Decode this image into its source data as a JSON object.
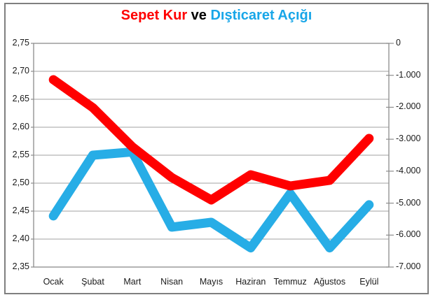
{
  "title": {
    "part_red": "Sepet Kur",
    "part_mid": " ve ",
    "part_blue": "Dışticaret Açığı"
  },
  "chart_data": {
    "type": "line",
    "title": "Sepet Kur ve Dışticaret Açığı",
    "legend_position": "none",
    "grid": "horizontal",
    "categories": [
      "Ocak",
      "Şubat",
      "Mart",
      "Nisan",
      "Mayıs",
      "Haziran",
      "Temmuz",
      "Ağustos",
      "Eylül"
    ],
    "series": [
      {
        "name": "Sepet Kur",
        "axis": "left",
        "color": "#ff0000",
        "values": [
          2.685,
          2.635,
          2.565,
          2.51,
          2.47,
          2.515,
          2.495,
          2.505,
          2.58
        ]
      },
      {
        "name": "Dışticaret Açığı",
        "axis": "right",
        "color": "#27ade6",
        "values": [
          -5400,
          -3500,
          -3400,
          -5750,
          -5600,
          -6400,
          -4700,
          -6400,
          -5050
        ]
      }
    ],
    "left_axis": {
      "min": 2.35,
      "max": 2.75,
      "tick_labels": [
        "2,75",
        "2,70",
        "2,65",
        "2,60",
        "2,55",
        "2,50",
        "2,45",
        "2,40",
        "2,35"
      ],
      "tick_values": [
        2.75,
        2.7,
        2.65,
        2.6,
        2.55,
        2.5,
        2.45,
        2.4,
        2.35
      ]
    },
    "right_axis": {
      "min": -7000,
      "max": 0,
      "tick_labels": [
        "0",
        "-1.000",
        "-2.000",
        "-3.000",
        "-4.000",
        "-5.000",
        "-6.000",
        "-7.000"
      ],
      "tick_values": [
        0,
        -1000,
        -2000,
        -3000,
        -4000,
        -5000,
        -6000,
        -7000
      ]
    }
  },
  "colors": {
    "red": "#ff0000",
    "blue": "#27ade6",
    "title_blue": "#18a6e8",
    "grid": "#a0a0a0",
    "plot_border": "#8c8c8c",
    "frame_border": "#7f7f7f",
    "text": "#1a1a1a",
    "background": "#ffffff"
  }
}
